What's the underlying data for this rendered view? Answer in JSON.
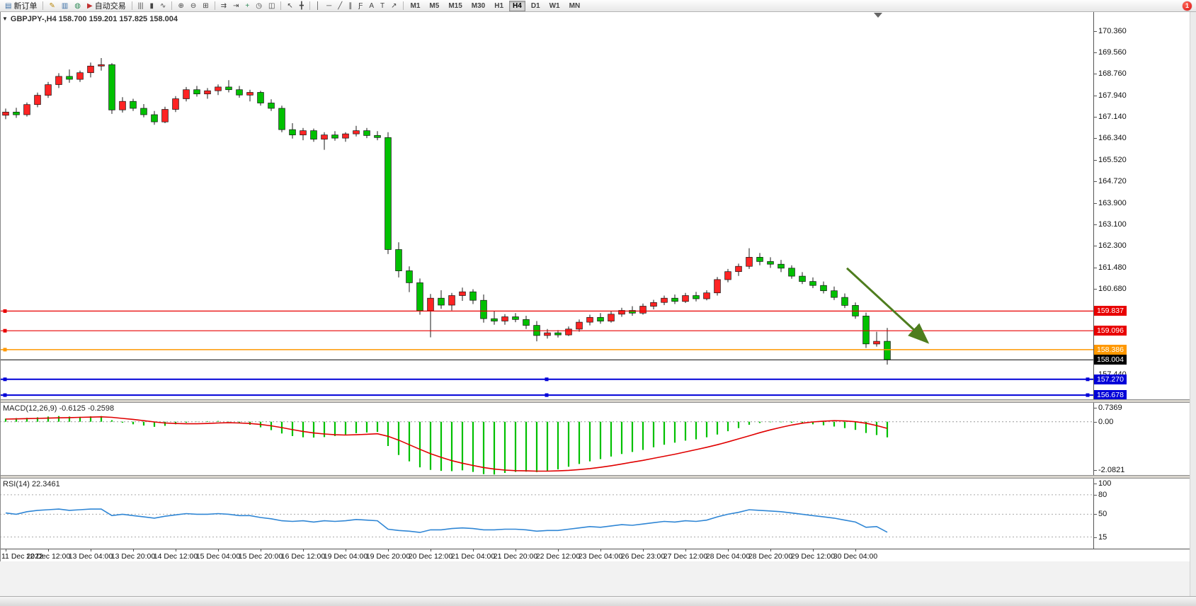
{
  "window": {
    "notification_badge": "1",
    "toolbar": {
      "items": [
        {
          "type": "button",
          "name": "new-order",
          "label": "新订单",
          "glyph": "▤",
          "glyph_color": "#3a6ea5"
        },
        {
          "type": "sep"
        },
        {
          "type": "button",
          "name": "metaeditor",
          "glyph": "✎",
          "glyph_color": "#b8860b"
        },
        {
          "type": "button",
          "name": "market-watch",
          "glyph": "▥",
          "glyph_color": "#3a6ea5"
        },
        {
          "type": "button",
          "name": "data-window",
          "glyph": "◍",
          "glyph_color": "#2e8b57"
        },
        {
          "type": "button",
          "name": "autotrading",
          "label": "自动交易",
          "glyph": "▶",
          "glyph_color": "#c03030"
        },
        {
          "type": "sep"
        },
        {
          "type": "button",
          "name": "bar-chart",
          "glyph": "|||",
          "glyph_color": "#444"
        },
        {
          "type": "button",
          "name": "candlestick-chart",
          "glyph": "▮",
          "glyph_color": "#444"
        },
        {
          "type": "button",
          "name": "line-chart",
          "glyph": "∿",
          "glyph_color": "#444"
        },
        {
          "type": "sep"
        },
        {
          "type": "button",
          "name": "zoom-in",
          "glyph": "⊕",
          "glyph_color": "#444"
        },
        {
          "type": "button",
          "name": "zoom-out",
          "glyph": "⊖",
          "glyph_color": "#444"
        },
        {
          "type": "button",
          "name": "tile-windows",
          "glyph": "⊞",
          "glyph_color": "#444"
        },
        {
          "type": "sep"
        },
        {
          "type": "button",
          "name": "auto-scroll",
          "glyph": "⇉",
          "glyph_color": "#444"
        },
        {
          "type": "button",
          "name": "chart-shift",
          "glyph": "⇥",
          "glyph_color": "#444"
        },
        {
          "type": "button",
          "name": "add-indicator",
          "glyph": "+",
          "glyph_color": "#2e8b57"
        },
        {
          "type": "button",
          "name": "periods",
          "glyph": "◷",
          "glyph_color": "#444"
        },
        {
          "type": "button",
          "name": "templates",
          "glyph": "◫",
          "glyph_color": "#444"
        },
        {
          "type": "sep"
        },
        {
          "type": "button",
          "name": "cursor",
          "glyph": "↖",
          "glyph_color": "#444"
        },
        {
          "type": "button",
          "name": "crosshair",
          "glyph": "╋",
          "glyph_color": "#444"
        },
        {
          "type": "sep"
        },
        {
          "type": "button",
          "name": "vertical-line",
          "glyph": "│",
          "glyph_color": "#444"
        },
        {
          "type": "button",
          "name": "horizontal-line",
          "glyph": "─",
          "glyph_color": "#444"
        },
        {
          "type": "button",
          "name": "trendline",
          "glyph": "╱",
          "glyph_color": "#444"
        },
        {
          "type": "button",
          "name": "equidistant-channel",
          "glyph": "∥",
          "glyph_color": "#444"
        },
        {
          "type": "button",
          "name": "fibonacci",
          "glyph": "Ƒ",
          "glyph_color": "#444"
        },
        {
          "type": "button",
          "name": "text",
          "glyph": "A",
          "glyph_color": "#444"
        },
        {
          "type": "button",
          "name": "text-label",
          "glyph": "T",
          "glyph_color": "#444"
        },
        {
          "type": "button",
          "name": "arrow-tools",
          "glyph": "↗",
          "glyph_color": "#444"
        },
        {
          "type": "sep"
        }
      ],
      "timeframes": [
        {
          "label": "M1"
        },
        {
          "label": "M5"
        },
        {
          "label": "M15"
        },
        {
          "label": "M30"
        },
        {
          "label": "H1"
        },
        {
          "label": "H4",
          "active": true
        },
        {
          "label": "D1"
        },
        {
          "label": "W1"
        },
        {
          "label": "MN"
        }
      ]
    }
  },
  "chart": {
    "collapse_glyph": "▼",
    "header": "GBPJPY-,H4  158.700 159.201 157.825 158.004",
    "symbol": "GBPJPY-",
    "period": "H4",
    "ohlc": {
      "open": "158.700",
      "high": "159.201",
      "low": "157.825",
      "close": "158.004"
    },
    "colors": {
      "up": "#ff2424",
      "down": "#00c000",
      "wick": "#1a1a1a"
    },
    "y_axis_labels": [
      "170.360",
      "169.560",
      "168.760",
      "167.940",
      "167.140",
      "166.340",
      "165.520",
      "164.720",
      "163.900",
      "163.100",
      "162.300",
      "161.480",
      "160.680",
      "157.440"
    ],
    "hlines": [
      {
        "name": "resistance-line-upper",
        "price": 159.837,
        "label": "159.837",
        "color": "#e80000",
        "width": 1.2,
        "handles": "left"
      },
      {
        "name": "resistance-line-lower",
        "price": 159.096,
        "label": "159.096",
        "color": "#e80000",
        "width": 1.2,
        "handles": "left"
      },
      {
        "name": "support-line-orange",
        "price": 158.386,
        "label": "158.386",
        "color": "#ff9800",
        "width": 1.5,
        "handles": "left"
      },
      {
        "name": "current-price-line",
        "price": 158.004,
        "label": "158.004",
        "color": "#000000",
        "width": 1,
        "handles": "none"
      },
      {
        "name": "support-line-blue-upper",
        "price": 157.27,
        "label": "157.270",
        "color": "#0000d8",
        "width": 2,
        "handles": "all"
      },
      {
        "name": "support-line-blue-lower",
        "price": 156.678,
        "label": "156.678",
        "color": "#0000d8",
        "width": 2,
        "handles": "all"
      }
    ],
    "arrow": {
      "from": {
        "bar": 79.2,
        "price": 161.45
      },
      "to": {
        "bar": 86.8,
        "price": 158.66
      },
      "color": "#4e7d1e"
    }
  },
  "macd": {
    "label_full": "MACD(12,26,9) -0.6125 -0.2598",
    "axis_labels": [
      "0.7369",
      "0.00",
      "-2.0821"
    ],
    "color": "#00c000",
    "signal_color": "#e00000"
  },
  "rsi": {
    "label_full": "RSI(14) 22.3461",
    "axis_labels": [
      "100",
      "80",
      "50",
      "15"
    ],
    "color": "#2f86d5"
  },
  "chart_data": [
    {
      "type": "candlestick",
      "title": "GBPJPY- H4",
      "ylim": [
        156.52,
        171.08
      ],
      "up_means": "red (CN convention)",
      "x_labels": [
        "11 Dec 2022",
        "12 Dec 12:00",
        "13 Dec 04:00",
        "13 Dec 20:00",
        "14 Dec 12:00",
        "15 Dec 04:00",
        "15 Dec 20:00",
        "16 Dec 12:00",
        "19 Dec 04:00",
        "19 Dec 20:00",
        "20 Dec 12:00",
        "21 Dec 04:00",
        "21 Dec 20:00",
        "22 Dec 12:00",
        "23 Dec 04:00",
        "26 Dec 23:00",
        "27 Dec 12:00",
        "28 Dec 04:00",
        "28 Dec 20:00",
        "29 Dec 12:00",
        "30 Dec 04:00"
      ],
      "bars_per_label": 4,
      "candles": [
        [
          167.2,
          167.45,
          167.05,
          167.32
        ],
        [
          167.32,
          167.48,
          167.1,
          167.22
        ],
        [
          167.22,
          167.68,
          167.15,
          167.6
        ],
        [
          167.6,
          168.05,
          167.5,
          167.95
        ],
        [
          167.95,
          168.45,
          167.85,
          168.35
        ],
        [
          168.35,
          168.78,
          168.22,
          168.66
        ],
        [
          168.66,
          168.92,
          168.42,
          168.55
        ],
        [
          168.55,
          168.88,
          168.45,
          168.8
        ],
        [
          168.8,
          169.18,
          168.62,
          169.05
        ],
        [
          169.05,
          169.35,
          168.88,
          169.1
        ],
        [
          169.1,
          169.16,
          167.25,
          167.4
        ],
        [
          167.4,
          167.88,
          167.3,
          167.72
        ],
        [
          167.72,
          167.82,
          167.36,
          167.46
        ],
        [
          167.46,
          167.62,
          167.12,
          167.22
        ],
        [
          167.22,
          167.36,
          166.84,
          166.95
        ],
        [
          166.95,
          167.52,
          166.9,
          167.42
        ],
        [
          167.42,
          167.92,
          167.32,
          167.82
        ],
        [
          167.82,
          168.26,
          167.72,
          168.16
        ],
        [
          168.16,
          168.3,
          167.9,
          168.0
        ],
        [
          168.0,
          168.22,
          167.82,
          168.12
        ],
        [
          168.12,
          168.36,
          167.96,
          168.26
        ],
        [
          168.26,
          168.52,
          168.06,
          168.16
        ],
        [
          168.16,
          168.3,
          167.86,
          167.96
        ],
        [
          167.96,
          168.16,
          167.72,
          168.06
        ],
        [
          168.06,
          168.12,
          167.56,
          167.66
        ],
        [
          167.66,
          167.8,
          167.36,
          167.46
        ],
        [
          167.46,
          167.56,
          166.56,
          166.66
        ],
        [
          166.66,
          166.9,
          166.32,
          166.46
        ],
        [
          166.46,
          166.72,
          166.26,
          166.62
        ],
        [
          166.62,
          166.7,
          166.2,
          166.3
        ],
        [
          166.3,
          166.56,
          165.9,
          166.46
        ],
        [
          166.46,
          166.6,
          166.24,
          166.34
        ],
        [
          166.34,
          166.56,
          166.2,
          166.5
        ],
        [
          166.5,
          166.8,
          166.4,
          166.62
        ],
        [
          166.62,
          166.72,
          166.34,
          166.44
        ],
        [
          166.44,
          166.6,
          166.26,
          166.36
        ],
        [
          166.36,
          166.56,
          161.98,
          162.15
        ],
        [
          162.15,
          162.42,
          161.1,
          161.35
        ],
        [
          161.35,
          161.52,
          160.55,
          160.9
        ],
        [
          160.9,
          161.06,
          159.7,
          159.85
        ],
        [
          159.85,
          160.48,
          158.85,
          160.32
        ],
        [
          160.32,
          160.62,
          159.92,
          160.06
        ],
        [
          160.06,
          160.52,
          159.86,
          160.42
        ],
        [
          160.42,
          160.72,
          160.22,
          160.56
        ],
        [
          160.56,
          160.66,
          160.1,
          160.24
        ],
        [
          160.24,
          160.46,
          159.4,
          159.55
        ],
        [
          159.55,
          159.82,
          159.32,
          159.46
        ],
        [
          159.46,
          159.72,
          159.32,
          159.62
        ],
        [
          159.62,
          159.76,
          159.42,
          159.52
        ],
        [
          159.52,
          159.66,
          159.16,
          159.3
        ],
        [
          159.3,
          159.46,
          158.7,
          158.92
        ],
        [
          158.92,
          159.16,
          158.8,
          159.02
        ],
        [
          159.02,
          159.12,
          158.84,
          158.94
        ],
        [
          158.94,
          159.26,
          158.9,
          159.16
        ],
        [
          159.16,
          159.52,
          159.06,
          159.42
        ],
        [
          159.42,
          159.7,
          159.3,
          159.6
        ],
        [
          159.6,
          159.76,
          159.36,
          159.46
        ],
        [
          159.46,
          159.82,
          159.4,
          159.72
        ],
        [
          159.72,
          159.96,
          159.62,
          159.86
        ],
        [
          159.86,
          160.02,
          159.66,
          159.76
        ],
        [
          159.76,
          160.12,
          159.7,
          160.02
        ],
        [
          160.02,
          160.26,
          159.9,
          160.16
        ],
        [
          160.16,
          160.42,
          160.06,
          160.32
        ],
        [
          160.32,
          160.46,
          160.1,
          160.2
        ],
        [
          160.2,
          160.52,
          160.14,
          160.42
        ],
        [
          160.42,
          160.56,
          160.2,
          160.3
        ],
        [
          160.3,
          160.62,
          160.24,
          160.52
        ],
        [
          160.52,
          161.12,
          160.42,
          161.02
        ],
        [
          161.02,
          161.42,
          160.92,
          161.32
        ],
        [
          161.32,
          161.62,
          161.16,
          161.52
        ],
        [
          161.52,
          162.2,
          161.42,
          161.86
        ],
        [
          161.86,
          162.02,
          161.56,
          161.7
        ],
        [
          161.7,
          161.86,
          161.46,
          161.6
        ],
        [
          161.6,
          161.76,
          161.3,
          161.45
        ],
        [
          161.45,
          161.56,
          161.05,
          161.15
        ],
        [
          161.15,
          161.3,
          160.85,
          160.95
        ],
        [
          160.95,
          161.1,
          160.7,
          160.8
        ],
        [
          160.8,
          160.95,
          160.5,
          160.6
        ],
        [
          160.6,
          160.76,
          160.25,
          160.35
        ],
        [
          160.35,
          160.5,
          159.95,
          160.05
        ],
        [
          160.05,
          160.16,
          159.55,
          159.65
        ],
        [
          159.65,
          159.78,
          158.45,
          158.6
        ],
        [
          158.6,
          159.06,
          158.5,
          158.7
        ],
        [
          158.7,
          159.201,
          157.825,
          158.004
        ]
      ]
    },
    {
      "type": "bar",
      "name": "MACD(12,26,9)",
      "ylim": [
        -2.0821,
        0.7369
      ],
      "current": {
        "macd": -0.6125,
        "signal": -0.2598
      },
      "values": [
        0.12,
        0.14,
        0.15,
        0.17,
        0.2,
        0.22,
        0.2,
        0.19,
        0.21,
        0.22,
        0.06,
        -0.04,
        -0.1,
        -0.15,
        -0.2,
        -0.16,
        -0.1,
        -0.04,
        -0.01,
        0.02,
        0.03,
        0.01,
        -0.05,
        -0.12,
        -0.22,
        -0.33,
        -0.46,
        -0.56,
        -0.61,
        -0.62,
        -0.6,
        -0.56,
        -0.5,
        -0.45,
        -0.42,
        -0.4,
        -0.95,
        -1.3,
        -1.55,
        -1.78,
        -1.88,
        -1.92,
        -1.93,
        -1.9,
        -1.96,
        -2.05,
        -2.06,
        -2.0,
        -1.96,
        -1.95,
        -1.97,
        -1.92,
        -1.86,
        -1.76,
        -1.65,
        -1.55,
        -1.46,
        -1.36,
        -1.26,
        -1.18,
        -1.1,
        -1.0,
        -0.9,
        -0.82,
        -0.74,
        -0.69,
        -0.61,
        -0.5,
        -0.37,
        -0.25,
        -0.12,
        -0.05,
        -0.02,
        -0.02,
        -0.04,
        -0.07,
        -0.1,
        -0.14,
        -0.19,
        -0.25,
        -0.32,
        -0.44,
        -0.52,
        -0.6125
      ],
      "signal": [
        0.1,
        0.11,
        0.12,
        0.13,
        0.14,
        0.15,
        0.16,
        0.17,
        0.18,
        0.19,
        0.17,
        0.13,
        0.09,
        0.04,
        -0.01,
        -0.05,
        -0.07,
        -0.08,
        -0.08,
        -0.07,
        -0.05,
        -0.04,
        -0.05,
        -0.07,
        -0.11,
        -0.16,
        -0.23,
        -0.31,
        -0.38,
        -0.44,
        -0.48,
        -0.51,
        -0.52,
        -0.51,
        -0.49,
        -0.47,
        -0.57,
        -0.72,
        -0.9,
        -1.08,
        -1.25,
        -1.39,
        -1.52,
        -1.62,
        -1.71,
        -1.79,
        -1.85,
        -1.89,
        -1.91,
        -1.92,
        -1.93,
        -1.93,
        -1.92,
        -1.9,
        -1.87,
        -1.83,
        -1.78,
        -1.72,
        -1.65,
        -1.58,
        -1.51,
        -1.43,
        -1.35,
        -1.27,
        -1.18,
        -1.09,
        -1.0,
        -0.9,
        -0.79,
        -0.67,
        -0.55,
        -0.43,
        -0.32,
        -0.22,
        -0.13,
        -0.06,
        -0.01,
        0.02,
        0.04,
        0.03,
        0.0,
        -0.06,
        -0.15,
        -0.2598
      ]
    },
    {
      "type": "line",
      "name": "RSI(14)",
      "ylim": [
        0,
        100
      ],
      "levels": [
        80,
        50,
        15
      ],
      "current": 22.3461,
      "values": [
        52,
        50,
        54,
        56,
        57,
        58,
        56,
        57,
        58,
        58,
        48,
        50,
        48,
        46,
        44,
        47,
        49,
        51,
        50,
        50,
        51,
        50,
        48,
        48,
        45,
        43,
        40,
        39,
        40,
        38,
        40,
        39,
        40,
        42,
        41,
        40,
        27,
        25,
        24,
        22,
        26,
        26,
        28,
        29,
        28,
        26,
        26,
        27,
        27,
        26,
        24,
        25,
        25,
        27,
        29,
        31,
        30,
        32,
        34,
        33,
        35,
        37,
        39,
        38,
        40,
        39,
        41,
        46,
        50,
        53,
        57,
        56,
        55,
        54,
        52,
        50,
        48,
        46,
        44,
        41,
        38,
        30,
        31,
        22.3461
      ]
    }
  ]
}
